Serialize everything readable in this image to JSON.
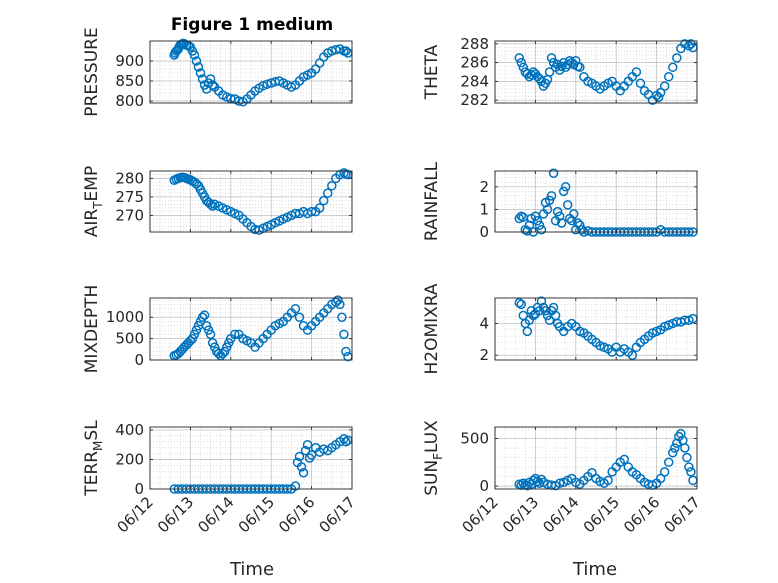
{
  "figure": {
    "title": "Figure 1 medium",
    "xlabel": "Time"
  },
  "style": {
    "marker_color": "#0072BD",
    "axes_color": "#262626",
    "grid_color": "#c8c8c8"
  },
  "x_ticks": [
    "06/12",
    "06/13",
    "06/14",
    "06/15",
    "06/16",
    "06/17"
  ],
  "chart_data": [
    {
      "type": "scatter",
      "ylabel": "PRESSURE",
      "ylim": [
        795,
        950
      ],
      "yticks": [
        800,
        850,
        900
      ],
      "xlim": [
        0,
        5
      ],
      "x": [
        0.6,
        0.62,
        0.65,
        0.68,
        0.7,
        0.72,
        0.75,
        0.78,
        0.82,
        0.85,
        0.9,
        0.95,
        1.0,
        1.05,
        1.1,
        1.15,
        1.2,
        1.25,
        1.3,
        1.35,
        1.4,
        1.45,
        1.5,
        1.55,
        1.6,
        1.7,
        1.8,
        1.9,
        2.0,
        2.1,
        2.2,
        2.3,
        2.4,
        2.5,
        2.6,
        2.7,
        2.8,
        2.9,
        3.0,
        3.1,
        3.2,
        3.3,
        3.4,
        3.5,
        3.6,
        3.7,
        3.8,
        3.9,
        4.0,
        4.1,
        4.2,
        4.3,
        4.4,
        4.5,
        4.6,
        4.7,
        4.8,
        4.85,
        4.9
      ],
      "y": [
        915,
        920,
        925,
        928,
        930,
        935,
        940,
        942,
        944,
        943,
        940,
        938,
        935,
        925,
        915,
        900,
        885,
        870,
        855,
        840,
        830,
        845,
        855,
        840,
        835,
        825,
        815,
        810,
        806,
        805,
        800,
        798,
        805,
        815,
        825,
        832,
        838,
        842,
        845,
        848,
        850,
        845,
        840,
        835,
        840,
        850,
        860,
        865,
        870,
        880,
        895,
        910,
        920,
        925,
        928,
        930,
        925,
        925,
        920
      ]
    },
    {
      "type": "scatter",
      "ylabel": "THETA",
      "ylim": [
        281.7,
        288.3
      ],
      "yticks": [
        282,
        284,
        286,
        288
      ],
      "xlim": [
        0,
        5
      ],
      "x": [
        0.6,
        0.65,
        0.7,
        0.75,
        0.8,
        0.85,
        0.9,
        0.95,
        1.0,
        1.05,
        1.1,
        1.15,
        1.2,
        1.25,
        1.3,
        1.35,
        1.4,
        1.45,
        1.5,
        1.55,
        1.6,
        1.65,
        1.7,
        1.75,
        1.8,
        1.85,
        1.9,
        1.95,
        2.0,
        2.05,
        2.1,
        2.2,
        2.3,
        2.4,
        2.5,
        2.6,
        2.7,
        2.8,
        2.9,
        3.0,
        3.1,
        3.2,
        3.3,
        3.4,
        3.5,
        3.6,
        3.7,
        3.8,
        3.9,
        4.0,
        4.05,
        4.1,
        4.2,
        4.3,
        4.4,
        4.5,
        4.6,
        4.7,
        4.8,
        4.85,
        4.9
      ],
      "y": [
        286.5,
        286.0,
        285.5,
        285.0,
        284.8,
        284.5,
        284.7,
        285.0,
        284.8,
        284.5,
        284.3,
        284.0,
        283.5,
        283.8,
        284.2,
        285.0,
        286.5,
        286.0,
        285.5,
        285.8,
        285.2,
        285.6,
        286.0,
        285.5,
        285.8,
        286.2,
        286.0,
        285.8,
        286.2,
        285.6,
        285.5,
        284.5,
        284.0,
        283.8,
        283.5,
        283.2,
        283.5,
        283.8,
        284.0,
        283.5,
        283.0,
        283.5,
        284.0,
        284.5,
        285.0,
        283.8,
        283.0,
        282.6,
        282.0,
        282.5,
        282.3,
        282.8,
        283.5,
        284.5,
        285.5,
        286.5,
        287.5,
        288.0,
        287.8,
        288.0,
        287.6
      ]
    },
    {
      "type": "scatter",
      "ylabel": "AIR_TEMP",
      "ylim": [
        265.5,
        282
      ],
      "yticks": [
        270,
        275,
        280
      ],
      "xlim": [
        0,
        5
      ],
      "x": [
        0.6,
        0.65,
        0.7,
        0.75,
        0.8,
        0.85,
        0.9,
        0.95,
        1.0,
        1.05,
        1.1,
        1.15,
        1.2,
        1.25,
        1.3,
        1.35,
        1.4,
        1.45,
        1.5,
        1.55,
        1.6,
        1.7,
        1.8,
        1.9,
        2.0,
        2.1,
        2.2,
        2.3,
        2.4,
        2.5,
        2.6,
        2.7,
        2.8,
        2.9,
        3.0,
        3.1,
        3.2,
        3.3,
        3.4,
        3.5,
        3.6,
        3.7,
        3.8,
        3.9,
        4.0,
        4.1,
        4.2,
        4.3,
        4.4,
        4.5,
        4.6,
        4.7,
        4.8,
        4.85,
        4.9
      ],
      "y": [
        279.5,
        279.8,
        280,
        280.2,
        280.3,
        280.2,
        280,
        279.8,
        279.6,
        279.3,
        279,
        278.5,
        278,
        277,
        276,
        275,
        274,
        273.5,
        273,
        272.5,
        273,
        272.5,
        272,
        271.5,
        271,
        270.5,
        270,
        269,
        268,
        267,
        266.2,
        266,
        266.5,
        267,
        267.5,
        268,
        268.5,
        269,
        269.5,
        270,
        270.5,
        270.5,
        271,
        270.5,
        271,
        271,
        272,
        274,
        276,
        278,
        280,
        281,
        281.5,
        281.2,
        281
      ]
    },
    {
      "type": "scatter",
      "ylabel": "RAINFALL",
      "ylim": [
        0,
        2.7
      ],
      "yticks": [
        0,
        1,
        2
      ],
      "xlim": [
        0,
        5
      ],
      "x": [
        0.6,
        0.65,
        0.7,
        0.75,
        0.8,
        0.85,
        0.9,
        0.95,
        1.0,
        1.05,
        1.1,
        1.15,
        1.2,
        1.25,
        1.3,
        1.35,
        1.4,
        1.45,
        1.5,
        1.55,
        1.6,
        1.65,
        1.7,
        1.75,
        1.8,
        1.85,
        1.9,
        1.95,
        2.0,
        2.05,
        2.1,
        2.15,
        2.2,
        2.3,
        2.4,
        2.5,
        2.6,
        2.7,
        2.8,
        2.9,
        3.0,
        3.1,
        3.2,
        3.3,
        3.4,
        3.5,
        3.6,
        3.7,
        3.8,
        3.9,
        4.0,
        4.1,
        4.2,
        4.3,
        4.4,
        4.5,
        4.6,
        4.7,
        4.8,
        4.9
      ],
      "y": [
        0.6,
        0.7,
        0.65,
        0.1,
        0.05,
        0.3,
        0.6,
        0.0,
        0.7,
        0.5,
        0.3,
        0.1,
        0.8,
        1.3,
        1.0,
        1.4,
        1.6,
        2.6,
        0.5,
        0.9,
        0.7,
        0.4,
        1.8,
        2.0,
        1.2,
        0.6,
        0.5,
        0.8,
        0.1,
        0.4,
        0.3,
        0.1,
        0.0,
        0.05,
        0,
        0,
        0,
        0,
        0,
        0,
        0,
        0,
        0,
        0,
        0,
        0,
        0,
        0,
        0,
        0,
        0,
        0.1,
        0,
        0,
        0,
        0,
        0,
        0,
        0,
        0
      ]
    },
    {
      "type": "scatter",
      "ylabel": "MIXDEPTH",
      "ylim": [
        0,
        1450
      ],
      "yticks": [
        0,
        500,
        1000
      ],
      "xlim": [
        0,
        5
      ],
      "x": [
        0.6,
        0.65,
        0.7,
        0.75,
        0.8,
        0.85,
        0.9,
        0.95,
        1.0,
        1.05,
        1.1,
        1.15,
        1.2,
        1.25,
        1.3,
        1.35,
        1.4,
        1.45,
        1.5,
        1.55,
        1.6,
        1.65,
        1.7,
        1.75,
        1.8,
        1.85,
        1.9,
        1.95,
        2.0,
        2.1,
        2.2,
        2.3,
        2.4,
        2.5,
        2.6,
        2.7,
        2.8,
        2.9,
        3.0,
        3.1,
        3.2,
        3.3,
        3.4,
        3.5,
        3.6,
        3.7,
        3.8,
        3.9,
        4.0,
        4.1,
        4.2,
        4.3,
        4.4,
        4.5,
        4.6,
        4.65,
        4.7,
        4.75,
        4.8,
        4.85,
        4.9
      ],
      "y": [
        100,
        120,
        150,
        200,
        250,
        300,
        350,
        400,
        450,
        500,
        600,
        700,
        800,
        900,
        1000,
        1050,
        800,
        700,
        600,
        400,
        300,
        200,
        150,
        100,
        150,
        200,
        300,
        400,
        500,
        600,
        600,
        500,
        450,
        400,
        300,
        400,
        500,
        600,
        700,
        800,
        850,
        900,
        1000,
        1100,
        1200,
        1000,
        800,
        700,
        800,
        900,
        1000,
        1100,
        1200,
        1300,
        1350,
        1400,
        1300,
        1000,
        600,
        200,
        80
      ]
    },
    {
      "type": "scatter",
      "ylabel": "H2OMIXRA",
      "ylim": [
        1.7,
        5.6
      ],
      "yticks": [
        2,
        4
      ],
      "xlim": [
        0,
        5
      ],
      "x": [
        0.6,
        0.65,
        0.7,
        0.75,
        0.8,
        0.85,
        0.9,
        0.95,
        1.0,
        1.05,
        1.1,
        1.15,
        1.2,
        1.25,
        1.3,
        1.35,
        1.4,
        1.45,
        1.5,
        1.55,
        1.6,
        1.7,
        1.8,
        1.9,
        2.0,
        2.1,
        2.2,
        2.3,
        2.4,
        2.5,
        2.6,
        2.7,
        2.8,
        2.9,
        3.0,
        3.1,
        3.2,
        3.3,
        3.4,
        3.5,
        3.6,
        3.7,
        3.8,
        3.9,
        4.0,
        4.1,
        4.2,
        4.3,
        4.4,
        4.5,
        4.6,
        4.7,
        4.8,
        4.9
      ],
      "y": [
        5.3,
        5.2,
        4.5,
        4.0,
        3.5,
        4.2,
        4.8,
        4.5,
        4.6,
        5.0,
        4.8,
        5.4,
        5.0,
        4.8,
        4.5,
        4.2,
        4.8,
        5.0,
        4.5,
        4.0,
        3.8,
        3.5,
        3.8,
        4.0,
        3.8,
        3.5,
        3.4,
        3.2,
        3.0,
        2.8,
        2.6,
        2.5,
        2.4,
        2.2,
        2.5,
        2.2,
        2.4,
        2.2,
        2.0,
        2.5,
        2.8,
        3.0,
        3.2,
        3.4,
        3.5,
        3.6,
        3.8,
        3.9,
        4.0,
        4.1,
        4.1,
        4.2,
        4.2,
        4.3
      ]
    },
    {
      "type": "scatter",
      "ylabel": "TERR_MSL",
      "ylim": [
        0,
        420
      ],
      "yticks": [
        0,
        200,
        400
      ],
      "xlim": [
        0,
        5
      ],
      "x": [
        0.6,
        0.7,
        0.8,
        0.9,
        1.0,
        1.1,
        1.2,
        1.3,
        1.4,
        1.5,
        1.6,
        1.7,
        1.8,
        1.9,
        2.0,
        2.1,
        2.2,
        2.3,
        2.4,
        2.5,
        2.6,
        2.7,
        2.8,
        2.9,
        3.0,
        3.1,
        3.2,
        3.3,
        3.4,
        3.5,
        3.6,
        3.65,
        3.7,
        3.75,
        3.8,
        3.85,
        3.9,
        3.95,
        4.0,
        4.1,
        4.2,
        4.3,
        4.4,
        4.5,
        4.6,
        4.7,
        4.8,
        4.85,
        4.9
      ],
      "y": [
        0,
        0,
        0,
        0,
        0,
        0,
        0,
        0,
        0,
        0,
        0,
        0,
        0,
        0,
        0,
        0,
        0,
        0,
        0,
        0,
        0,
        0,
        0,
        0,
        0,
        0,
        0,
        0,
        0,
        0,
        20,
        180,
        220,
        150,
        110,
        260,
        300,
        210,
        230,
        280,
        250,
        270,
        260,
        280,
        300,
        320,
        340,
        320,
        330
      ]
    },
    {
      "type": "scatter",
      "ylabel": "SUN_FLUX",
      "ylim": [
        -30,
        620
      ],
      "yticks": [
        0,
        500
      ],
      "xlim": [
        0,
        5
      ],
      "x": [
        0.6,
        0.65,
        0.7,
        0.75,
        0.8,
        0.85,
        0.9,
        0.95,
        1.0,
        1.05,
        1.1,
        1.15,
        1.2,
        1.3,
        1.4,
        1.5,
        1.6,
        1.7,
        1.8,
        1.9,
        2.0,
        2.1,
        2.2,
        2.3,
        2.4,
        2.5,
        2.6,
        2.7,
        2.8,
        2.9,
        3.0,
        3.1,
        3.2,
        3.3,
        3.4,
        3.5,
        3.6,
        3.7,
        3.8,
        3.9,
        4.0,
        4.1,
        4.2,
        4.3,
        4.4,
        4.45,
        4.5,
        4.55,
        4.6,
        4.65,
        4.7,
        4.75,
        4.8,
        4.85,
        4.9
      ],
      "y": [
        20,
        10,
        30,
        15,
        5,
        40,
        20,
        60,
        80,
        50,
        30,
        70,
        40,
        20,
        10,
        5,
        30,
        40,
        60,
        80,
        40,
        20,
        60,
        100,
        140,
        80,
        50,
        30,
        60,
        150,
        200,
        250,
        280,
        200,
        150,
        120,
        80,
        40,
        20,
        10,
        30,
        80,
        150,
        250,
        350,
        400,
        450,
        520,
        550,
        480,
        400,
        300,
        200,
        150,
        60
      ]
    }
  ]
}
